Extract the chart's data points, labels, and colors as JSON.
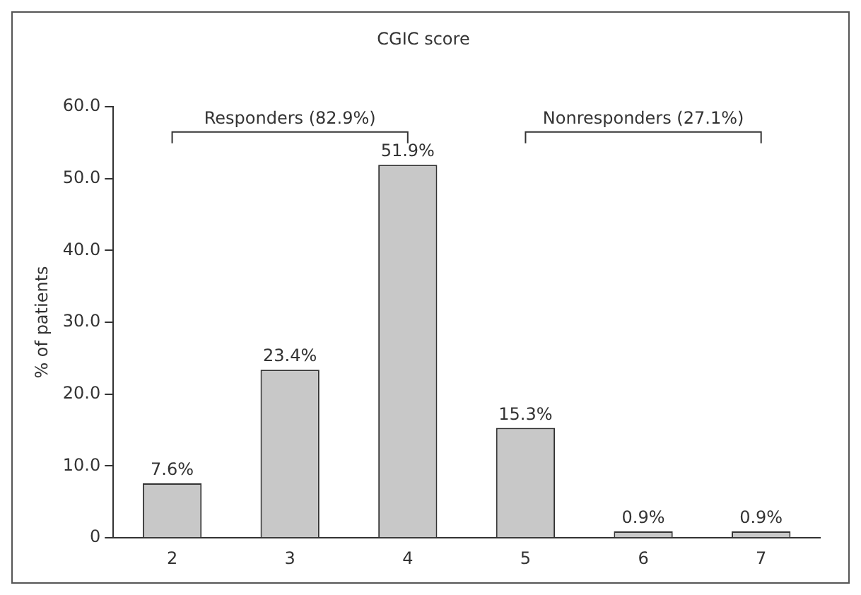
{
  "chart_data": {
    "type": "bar",
    "title": "CGIC score",
    "ylabel": "% of patients",
    "categories": [
      "2",
      "3",
      "4",
      "5",
      "6",
      "7"
    ],
    "values": [
      7.6,
      23.4,
      51.9,
      15.3,
      0.9,
      0.9
    ],
    "value_labels": [
      "7.6%",
      "23.4%",
      "51.9%",
      "15.3%",
      "0.9%",
      "0.9%"
    ],
    "color": "#c8c8c8",
    "ylim": [
      0,
      60
    ],
    "yticks": [
      0,
      {
        "value": 10,
        "label": "10.0"
      },
      {
        "value": 20,
        "label": "20.0"
      },
      {
        "value": 30,
        "label": "30.0"
      },
      {
        "value": 40,
        "label": "40.0"
      },
      {
        "value": 50,
        "label": "50.0"
      },
      {
        "value": 60,
        "label": "60.0"
      }
    ],
    "annotations": [
      "Responders (82.9%)",
      "Nonresponders (27.1%)"
    ],
    "grid": false,
    "legend": false
  }
}
